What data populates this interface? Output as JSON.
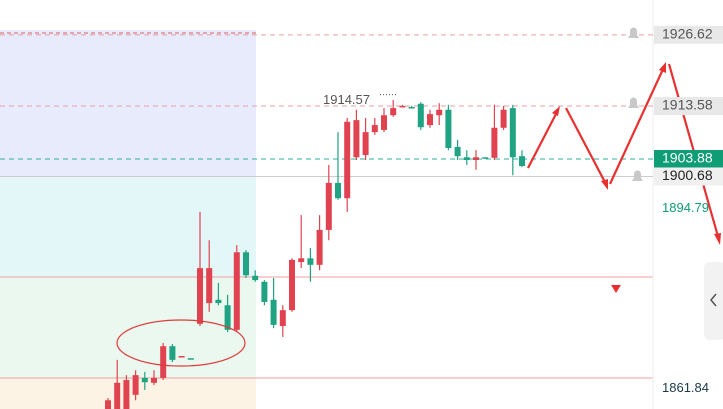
{
  "chart_data": {
    "type": "candlestick",
    "up_color": "#1fa383",
    "down_color": "#e0434f",
    "ylim": [
      1858.1,
      1933.0
    ],
    "open": [
      1859.7,
      1862.9,
      1863.4,
      1864.3,
      1863.0,
      1863.8,
      1869.6,
      1867.1,
      1867.8,
      1867.4,
      1883.9,
      1883.9,
      1877.5,
      1872.6,
      1886.8,
      1882.6,
      1881.7,
      1877.7,
      1873.5,
      1876.2,
      1885.4,
      1885.7,
      1884.5,
      1890.9,
      1899.5,
      1896.7,
      1910.7,
      1911.0,
      1908.8,
      1910.1,
      1911.9,
      1913.2,
      1913.6,
      1913.4,
      1909.7,
      1912.1,
      1912.9,
      1905.9,
      1904.4,
      1903.7,
      1904.2,
      1904.2,
      1909.6,
      1912.9,
      1904.2,
      1902.6
    ],
    "close": [
      1858.1,
      1858.1,
      1858.1,
      1860.7,
      1863.8,
      1862.9,
      1863.8,
      1869.6,
      1867.6,
      1867.4,
      1873.7,
      1877.5,
      1878.1,
      1877.1,
      1872.6,
      1886.8,
      1882.5,
      1881.4,
      1878.1,
      1873.3,
      1876.2,
      1885.0,
      1885.7,
      1884.5,
      1890.9,
      1899.5,
      1896.7,
      1904.2,
      1904.6,
      1908.8,
      1909.2,
      1911.9,
      1913.4,
      1913.4,
      1914.0,
      1910.1,
      1911.9,
      1912.9,
      1906.1,
      1904.2,
      1903.7,
      1904.2,
      1904.1,
      1909.6,
      1913.2,
      1904.4
    ],
    "high": [
      1860.1,
      1867.1,
      1864.3,
      1865.2,
      1864.9,
      1865.2,
      1870.2,
      1870.0,
      1867.8,
      1867.4,
      1894.2,
      1889.0,
      1881.2,
      1879.0,
      1888.1,
      1887.2,
      1883.5,
      1881.7,
      1882.1,
      1877.1,
      1885.7,
      1893.6,
      1887.6,
      1893.6,
      1902.8,
      1908.8,
      1911.4,
      1912.9,
      1911.4,
      1911.4,
      1913.2,
      1914.7,
      1913.8,
      1913.6,
      1914.3,
      1912.9,
      1914.1,
      1913.8,
      1907.4,
      1905.5,
      1905.5,
      1904.2,
      1913.8,
      1913.6,
      1913.8,
      1905.5
    ],
    "low": [
      1858.1,
      1858.1,
      1858.1,
      1859.7,
      1861.6,
      1862.5,
      1863.4,
      1866.7,
      1867.6,
      1867.4,
      1873.3,
      1875.9,
      1877.1,
      1872.2,
      1872.2,
      1882.1,
      1881.4,
      1877.1,
      1872.9,
      1871.3,
      1875.9,
      1883.9,
      1881.4,
      1883.5,
      1889.0,
      1896.4,
      1894.2,
      1903.7,
      1903.7,
      1908.3,
      1908.8,
      1911.6,
      1913.4,
      1913.4,
      1909.2,
      1909.6,
      1910.1,
      1905.5,
      1903.7,
      1902.8,
      1901.9,
      1904.2,
      1903.7,
      1909.2,
      1900.9,
      1902.4
    ],
    "price_labels": [
      {
        "value": 1926.62,
        "color": "#555555",
        "box": "#e8e8e8"
      },
      {
        "value": 1913.58,
        "color": "#555555",
        "box": "#e8e8e8"
      },
      {
        "value": 1903.88,
        "color": "#ffffff",
        "box": "#0f9d75"
      },
      {
        "value": 1900.68,
        "color": "#222222",
        "box": "#f0f0f0"
      },
      {
        "value": 1894.79,
        "color": "#0f9d75",
        "box": null
      },
      {
        "value": 1861.84,
        "color": "#1a3a4a",
        "box": null
      }
    ],
    "level_lines": [
      {
        "value": 1926.62,
        "color": "#e9a0a4"
      },
      {
        "value": 1913.58,
        "color": "#e9a0a4"
      },
      {
        "value": 1903.88,
        "color": "#2bb39a"
      },
      {
        "value": 1900.68,
        "color": "#cccccc"
      }
    ],
    "high_marker": 1914.57
  }
}
